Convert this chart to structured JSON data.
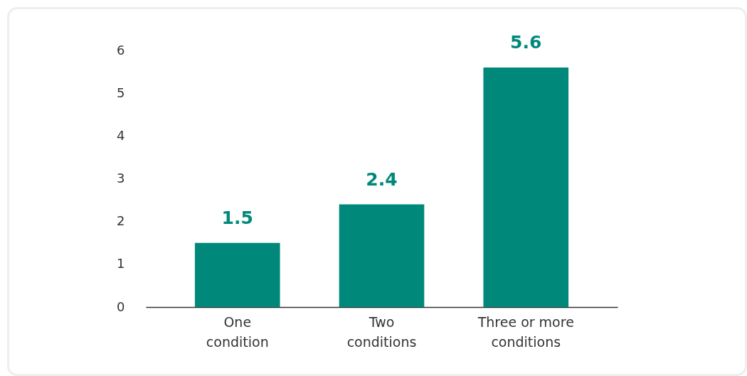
{
  "chart_data": {
    "type": "bar",
    "categories": [
      "One condition",
      "Two conditions",
      "Three or more conditions"
    ],
    "values": [
      1.5,
      2.4,
      5.6
    ],
    "color": "#00897a",
    "ylim": [
      0,
      6
    ],
    "yticks": [
      0,
      1,
      2,
      3,
      4,
      5,
      6
    ],
    "grid": false,
    "data_labels": true
  }
}
